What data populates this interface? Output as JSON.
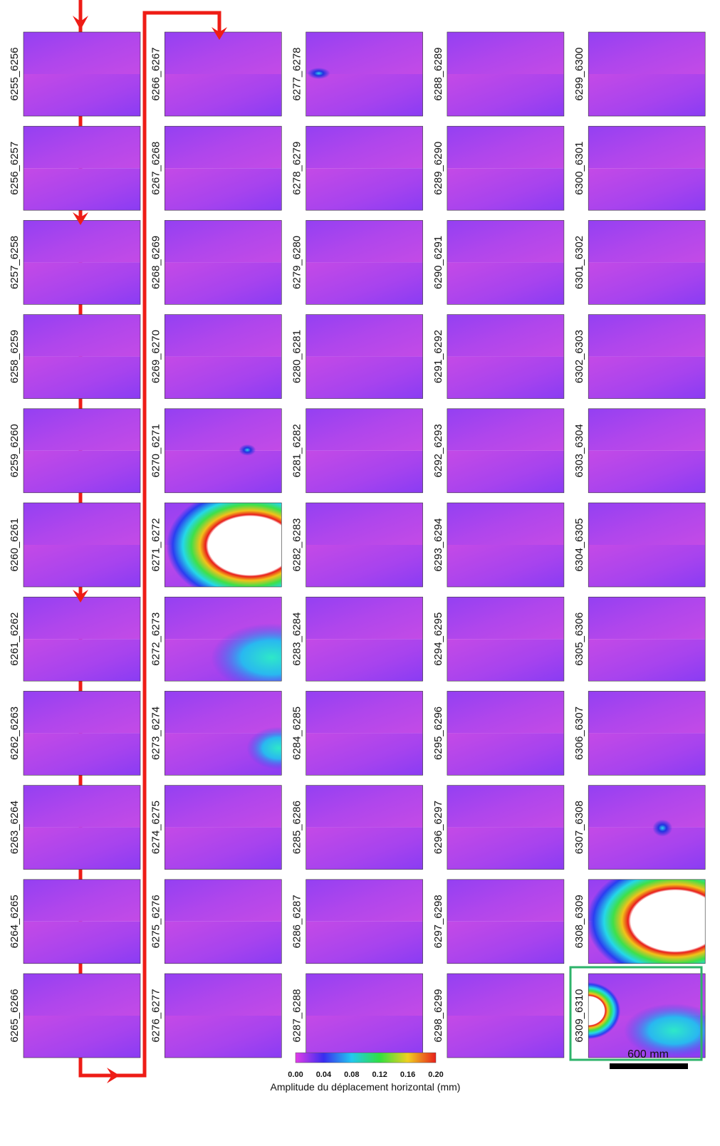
{
  "panels": {
    "columns": [
      [
        "6255_6256",
        "6256_6257",
        "6257_6258",
        "6258_6259",
        "6259_6260",
        "6260_6261",
        "6261_6262",
        "6262_6263",
        "6263_6264",
        "6264_6265",
        "6265_6266"
      ],
      [
        "6266_6267",
        "6267_6268",
        "6268_6269",
        "6269_6270",
        "6270_6271",
        "6271_6272",
        "6272_6273",
        "6273_6274",
        "6274_6275",
        "6275_6276",
        "6276_6277"
      ],
      [
        "6277_6278",
        "6278_6279",
        "6279_6280",
        "6280_6281",
        "6281_6282",
        "6282_6283",
        "6283_6284",
        "6284_6285",
        "6285_6286",
        "6286_6287",
        "6287_6288"
      ],
      [
        "6288_6289",
        "6289_6290",
        "6290_6291",
        "6291_6292",
        "6292_6293",
        "6293_6294",
        "6294_6295",
        "6295_6296",
        "6296_6297",
        "6297_6298",
        "6298_6299"
      ],
      [
        "6299_6300",
        "6300_6301",
        "6301_6302",
        "6302_6303",
        "6303_6304",
        "6304_6305",
        "6305_6306",
        "6306_6307",
        "6307_6308",
        "6308_6309",
        "6309_6310"
      ]
    ]
  },
  "colorbar": {
    "ticks": [
      "0.00",
      "0.04",
      "0.08",
      "0.12",
      "0.16",
      "0.20"
    ],
    "title": "Amplitude du déplacement horizontal (mm)"
  },
  "scale_bar": {
    "label": "600 mm"
  }
}
